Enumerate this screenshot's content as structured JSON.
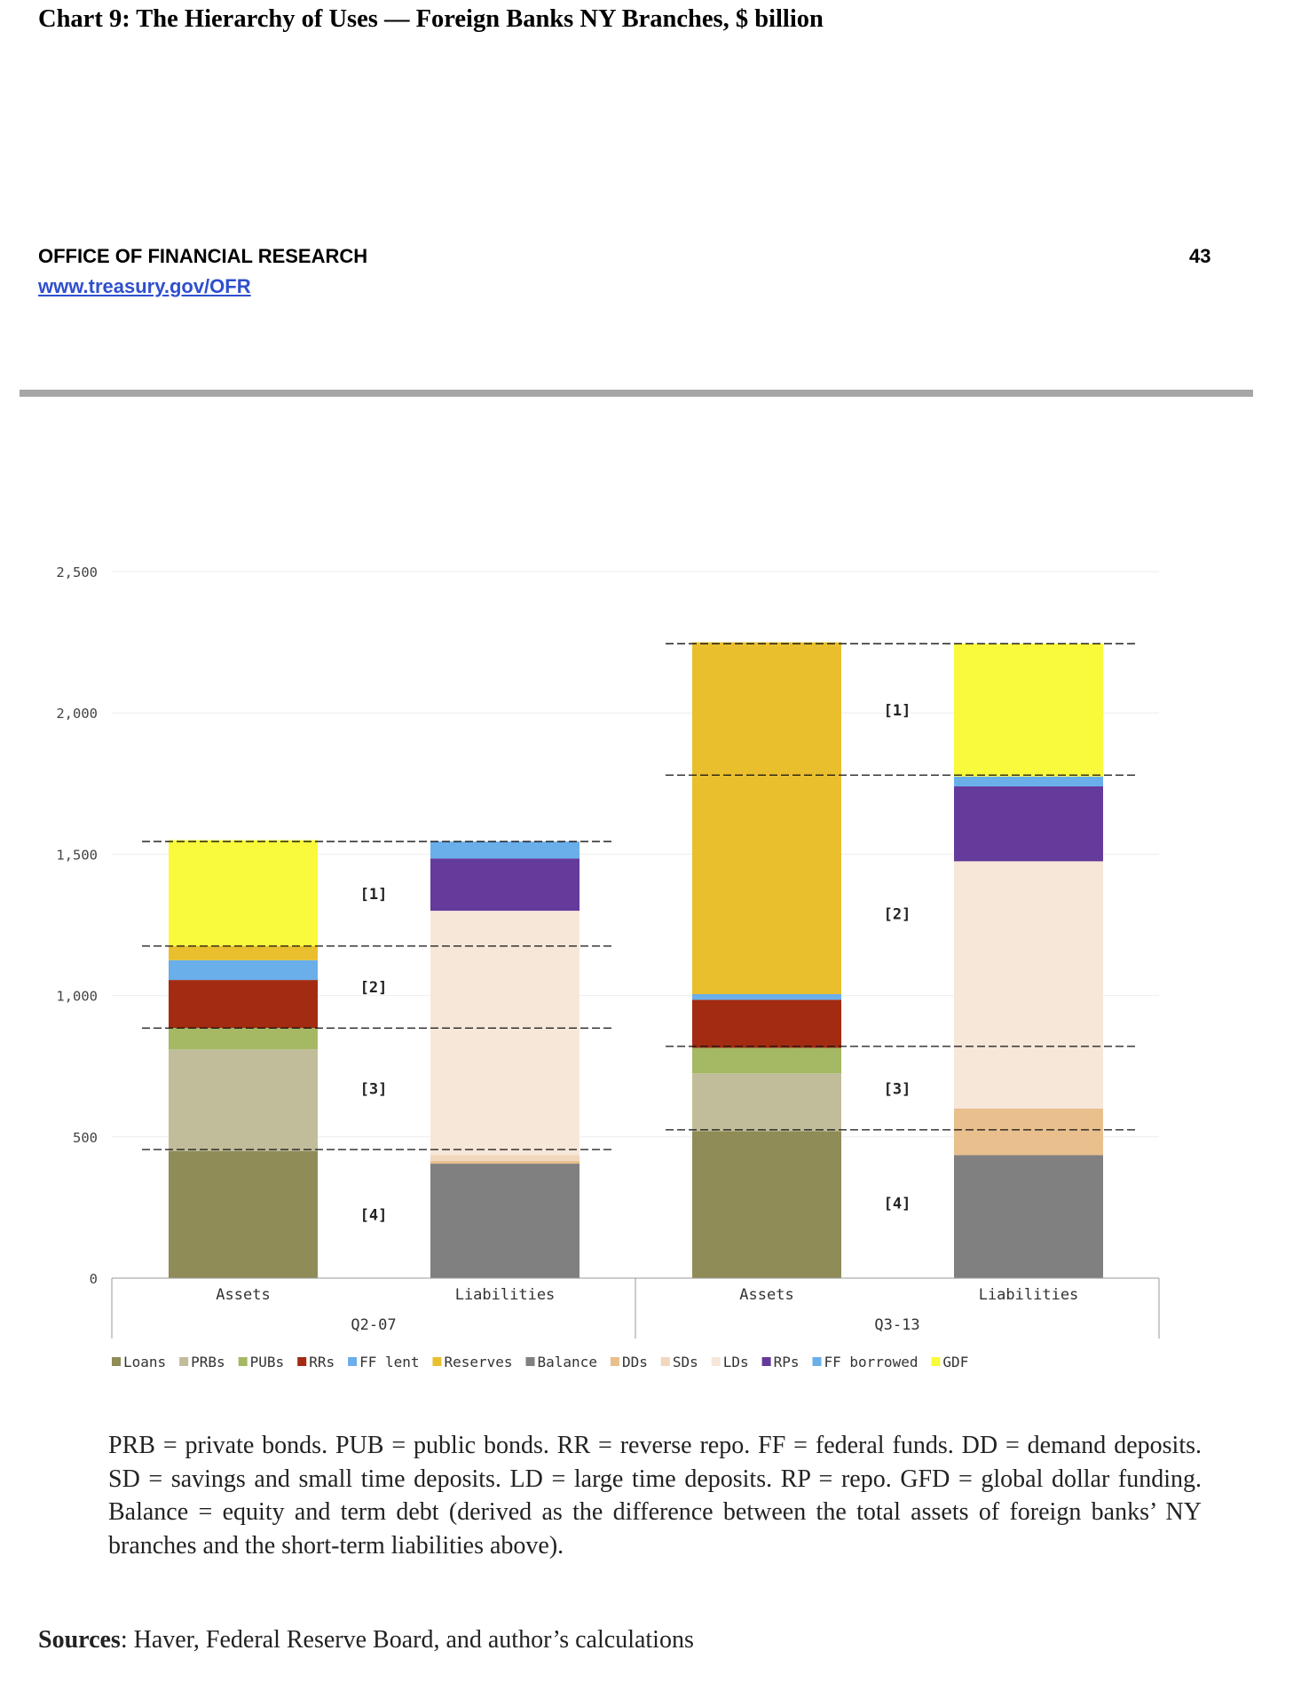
{
  "page": {
    "title": "Chart 9: The Hierarchy of Uses — Foreign Banks NY Branches, $ billion",
    "org_name": "OFFICE OF FINANCIAL RESEARCH",
    "org_link": "www.treasury.gov/OFR",
    "page_number": "43",
    "note": "PRB = private bonds. PUB = public bonds. RR = reverse repo. FF = federal funds. DD = demand deposits. SD = savings and small time deposits. LD = large time deposits. RP = repo. GFD = global dollar funding. Balance = equity and term debt (derived as the difference between the total assets of foreign banks’ NY branches and the short-term liabilities above).",
    "sources_label": "Sources",
    "sources_text": ": Haver, Federal Reserve Board, and author’s calculations"
  },
  "chart_data": {
    "type": "bar",
    "stacked": true,
    "title": "",
    "xlabel": "",
    "ylabel": "",
    "ylim": [
      0,
      2500
    ],
    "yticks": [
      0,
      500,
      1000,
      1500,
      2000,
      2500
    ],
    "ytick_labels": [
      "0",
      "500",
      "1,000",
      "1,500",
      "2,000",
      "2,500"
    ],
    "grid": true,
    "legend_position": "bottom",
    "groups": [
      "Q2-07",
      "Q3-13"
    ],
    "categories": [
      "Assets",
      "Liabilities",
      "Assets",
      "Liabilities"
    ],
    "category_groups": [
      0,
      0,
      1,
      1
    ],
    "series": [
      {
        "name": "Loans",
        "color": "#8f8c58",
        "values": [
          450,
          0,
          520,
          0
        ]
      },
      {
        "name": "PRBs",
        "color": "#c1bd9a",
        "values": [
          360,
          0,
          205,
          0
        ]
      },
      {
        "name": "PUBs",
        "color": "#a5b863",
        "values": [
          75,
          0,
          90,
          0
        ]
      },
      {
        "name": "RRs",
        "color": "#a22b12",
        "values": [
          170,
          0,
          170,
          0
        ]
      },
      {
        "name": "FF lent",
        "color": "#6aaeea",
        "values": [
          70,
          0,
          20,
          0
        ]
      },
      {
        "name": "Reserves",
        "color": "#e9bf2e",
        "values": [
          50,
          0,
          1245,
          0
        ]
      },
      {
        "name": "Balance",
        "color": "#808080",
        "values": [
          0,
          405,
          0,
          435
        ]
      },
      {
        "name": "DDs",
        "color": "#e8bf8d",
        "values": [
          0,
          10,
          0,
          165
        ]
      },
      {
        "name": "SDs",
        "color": "#f1d7bd",
        "values": [
          0,
          20,
          0,
          0
        ]
      },
      {
        "name": "LDs",
        "color": "#f7e7d9",
        "values": [
          0,
          865,
          0,
          875
        ]
      },
      {
        "name": "RPs",
        "color": "#643a9b",
        "values": [
          0,
          185,
          0,
          265
        ]
      },
      {
        "name": "FF borrowed",
        "color": "#6aaeea",
        "values": [
          0,
          60,
          0,
          35
        ]
      },
      {
        "name": "GDF",
        "color": "#fafa3c",
        "values": [
          375,
          0,
          0,
          470
        ]
      }
    ],
    "annotations": {
      "dashed_levels": [
        [
          455,
          885,
          1175,
          1545
        ],
        [
          525,
          820,
          1780,
          2245
        ]
      ],
      "bracket_labels": [
        {
          "group": 0,
          "label": "[4]",
          "y": 225
        },
        {
          "group": 0,
          "label": "[3]",
          "y": 670
        },
        {
          "group": 0,
          "label": "[2]",
          "y": 1030
        },
        {
          "group": 0,
          "label": "[1]",
          "y": 1360
        },
        {
          "group": 1,
          "label": "[4]",
          "y": 265
        },
        {
          "group": 1,
          "label": "[3]",
          "y": 670
        },
        {
          "group": 1,
          "label": "[2]",
          "y": 1290
        },
        {
          "group": 1,
          "label": "[1]",
          "y": 2010
        }
      ]
    }
  }
}
